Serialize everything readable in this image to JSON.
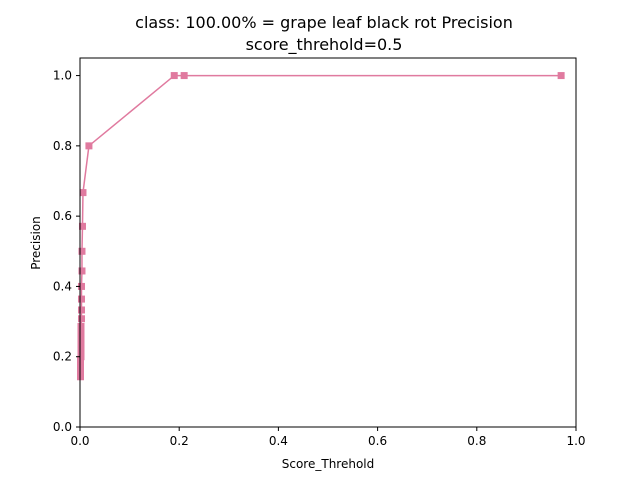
{
  "chart_data": {
    "type": "line",
    "title_line1": "class: 100.00% = grape leaf black rot Precision",
    "title_line2": "score_threhold=0.5",
    "xlabel": "Score_Threhold",
    "ylabel": "Precision",
    "xlim": [
      0.0,
      1.0
    ],
    "ylim": [
      0.0,
      1.05
    ],
    "xticks": [
      "0.0",
      "0.2",
      "0.4",
      "0.6",
      "0.8",
      "1.0"
    ],
    "yticks": [
      "0.0",
      "0.2",
      "0.4",
      "0.6",
      "0.8",
      "1.0"
    ],
    "grid": false,
    "series": [
      {
        "color": "#e07a9f",
        "marker": "square",
        "points": [
          {
            "x": 0.97,
            "y": 1.0
          },
          {
            "x": 0.21,
            "y": 1.0
          },
          {
            "x": 0.19,
            "y": 1.0
          },
          {
            "x": 0.018,
            "y": 0.8
          },
          {
            "x": 0.006,
            "y": 0.667
          },
          {
            "x": 0.005,
            "y": 0.571
          },
          {
            "x": 0.004,
            "y": 0.5
          },
          {
            "x": 0.004,
            "y": 0.444
          },
          {
            "x": 0.003,
            "y": 0.4
          },
          {
            "x": 0.003,
            "y": 0.364
          },
          {
            "x": 0.003,
            "y": 0.333
          },
          {
            "x": 0.003,
            "y": 0.308
          },
          {
            "x": 0.002,
            "y": 0.286
          },
          {
            "x": 0.002,
            "y": 0.267
          },
          {
            "x": 0.002,
            "y": 0.25
          },
          {
            "x": 0.002,
            "y": 0.235
          },
          {
            "x": 0.002,
            "y": 0.222
          },
          {
            "x": 0.002,
            "y": 0.21
          },
          {
            "x": 0.002,
            "y": 0.2
          },
          {
            "x": 0.001,
            "y": 0.19
          },
          {
            "x": 0.001,
            "y": 0.182
          },
          {
            "x": 0.001,
            "y": 0.174
          },
          {
            "x": 0.001,
            "y": 0.167
          },
          {
            "x": 0.001,
            "y": 0.16
          },
          {
            "x": 0.001,
            "y": 0.154
          },
          {
            "x": 0.001,
            "y": 0.148
          },
          {
            "x": 0.001,
            "y": 0.143
          }
        ]
      }
    ]
  }
}
